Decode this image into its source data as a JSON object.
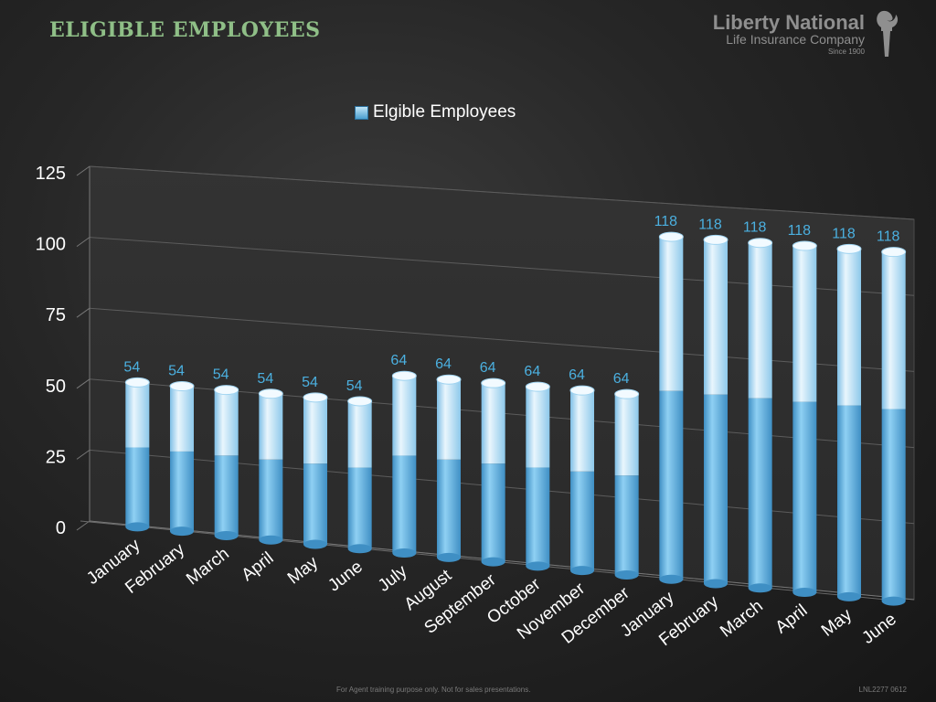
{
  "slide": {
    "title": "ELIGIBLE EMPLOYEES",
    "logo_name": "Liberty National",
    "logo_sub": "Life Insurance Company",
    "logo_since": "Since 1900",
    "footer_note": "For Agent training purpose only. Not for sales presentations.",
    "footer_code": "LNL2277 0612"
  },
  "colors": {
    "title": "#8fbf87",
    "bar_light": "#cfe9f7",
    "bar_dark": "#4c9fd0",
    "data_label": "#4bb0e0",
    "axis_text": "#ffffff"
  },
  "chart_data": {
    "type": "bar",
    "legend": "Elgible Employees",
    "legend_position": "top",
    "grid": true,
    "ylim": [
      0,
      125
    ],
    "yticks": [
      "0",
      "25",
      "50",
      "75",
      "100",
      "125"
    ],
    "categories": [
      "January",
      "February",
      "March",
      "April",
      "May",
      "June",
      "July",
      "August",
      "September",
      "October",
      "November",
      "December",
      "January",
      "February",
      "March",
      "April",
      "May",
      "June"
    ],
    "series": [
      {
        "name": "Elgible Employees",
        "values": [
          54,
          54,
          54,
          54,
          54,
          54,
          64,
          64,
          64,
          64,
          64,
          64,
          118,
          118,
          118,
          118,
          118,
          118
        ]
      }
    ]
  }
}
